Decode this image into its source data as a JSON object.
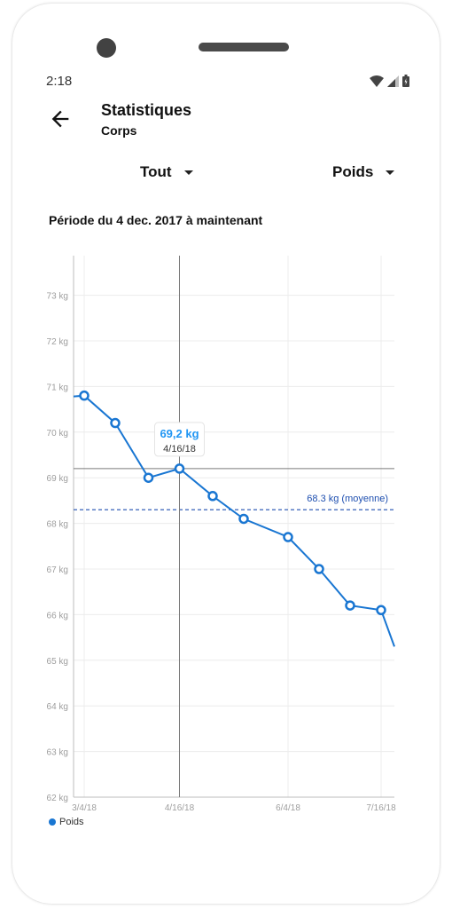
{
  "status_bar": {
    "time": "2:18"
  },
  "app_bar": {
    "title": "Statistiques",
    "subtitle": "Corps"
  },
  "filters": {
    "period_select": {
      "value": "Tout"
    },
    "metric_select": {
      "value": "Poids"
    }
  },
  "period_text": "Période du 4 dec. 2017 à maintenant",
  "colors": {
    "line": "#1976d2",
    "average": "#1e4fb0",
    "tooltip_value": "#2196f3",
    "grid": "#ececec",
    "crosshair": "#7a7a7a"
  },
  "chart_data": {
    "type": "line",
    "x_tick_labels": [
      "3/4/18",
      "4/16/18",
      "6/4/18",
      "7/16/18"
    ],
    "y_tick_labels": [
      "62 kg",
      "63 kg",
      "64 kg",
      "65 kg",
      "66 kg",
      "67 kg",
      "68 kg",
      "69 kg",
      "70 kg",
      "71 kg",
      "72 kg",
      "73 kg"
    ],
    "ylim": [
      62,
      74
    ],
    "xlim": [
      "2018-03-04",
      "2018-07-16"
    ],
    "series": [
      {
        "name": "Poids",
        "points": [
          {
            "x": "2018-03-04",
            "y": 70.8
          },
          {
            "x": "2018-03-18",
            "y": 70.2
          },
          {
            "x": "2018-04-02",
            "y": 69.0
          },
          {
            "x": "2018-04-16",
            "y": 69.2
          },
          {
            "x": "2018-05-01",
            "y": 68.6
          },
          {
            "x": "2018-05-15",
            "y": 68.1
          },
          {
            "x": "2018-06-04",
            "y": 67.7
          },
          {
            "x": "2018-06-18",
            "y": 67.0
          },
          {
            "x": "2018-07-02",
            "y": 66.2
          },
          {
            "x": "2018-07-16",
            "y": 66.1
          }
        ]
      }
    ],
    "average": {
      "value": 68.3,
      "label": "68.3 kg (moyenne)"
    },
    "selected": {
      "x": "2018-04-16",
      "y": 69.2,
      "value_label": "69,2 kg",
      "date_label": "4/16/18"
    },
    "legend": {
      "label": "Poids",
      "position": "bottom-left"
    },
    "grid": true
  }
}
